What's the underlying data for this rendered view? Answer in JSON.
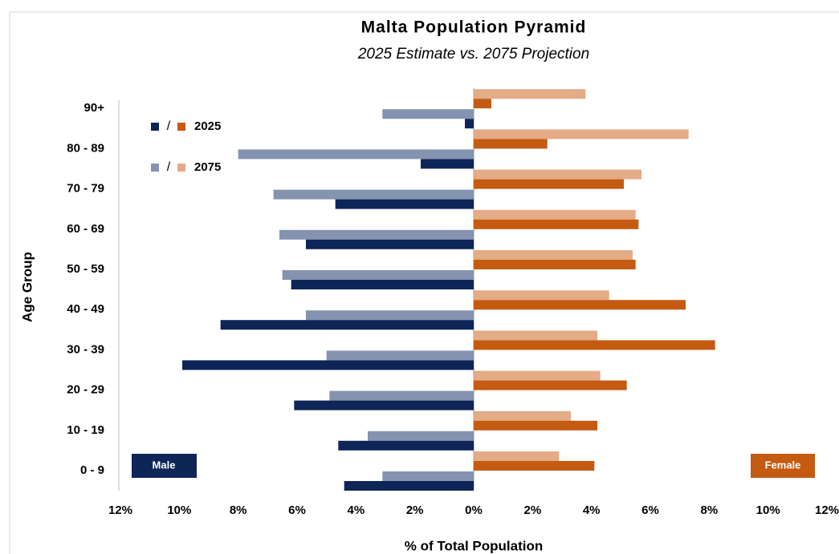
{
  "chart_data": {
    "type": "pyramid",
    "title": "Malta Population Pyramid",
    "subtitle": "2025 Estimate vs. 2075 Projection",
    "x_label": "% of Total Population",
    "y_label": "Age Group",
    "left_label": "Male",
    "right_label": "Female",
    "legend_separator": "/",
    "categories": [
      "0 - 9",
      "10 - 19",
      "20 - 29",
      "30 - 39",
      "40 - 49",
      "50 - 59",
      "60 - 69",
      "70 - 79",
      "80 - 89",
      "90+"
    ],
    "series": [
      {
        "name": "2025",
        "male_color": "#0d2557",
        "female_color": "#c55a11",
        "male": [
          -4.4,
          -4.6,
          -6.1,
          -9.9,
          -8.6,
          -6.2,
          -5.7,
          -4.7,
          -1.8,
          -0.3
        ],
        "female": [
          4.1,
          4.2,
          5.2,
          8.2,
          7.2,
          5.5,
          5.6,
          5.1,
          2.5,
          0.6
        ]
      },
      {
        "name": "2075",
        "male_color": "#8393b0",
        "female_color": "#e3ab86",
        "male": [
          -3.1,
          -3.6,
          -4.9,
          -5.0,
          -5.7,
          -6.5,
          -6.6,
          -6.8,
          -8.0,
          -3.1
        ],
        "female": [
          2.9,
          3.3,
          4.3,
          4.2,
          4.6,
          5.4,
          5.5,
          5.7,
          7.3,
          3.8
        ]
      }
    ],
    "xlim": [
      -12,
      12
    ],
    "xticks": [
      {
        "value": -12,
        "label": "12%"
      },
      {
        "value": -10,
        "label": "10%"
      },
      {
        "value": -8,
        "label": "8%"
      },
      {
        "value": -6,
        "label": "6%"
      },
      {
        "value": -4,
        "label": "4%"
      },
      {
        "value": -2,
        "label": "2%"
      },
      {
        "value": 0,
        "label": "0%"
      },
      {
        "value": 2,
        "label": "2%"
      },
      {
        "value": 4,
        "label": "4%"
      },
      {
        "value": 6,
        "label": "6%"
      },
      {
        "value": 8,
        "label": "8%"
      },
      {
        "value": 10,
        "label": "10%"
      },
      {
        "value": 12,
        "label": "12%"
      }
    ]
  }
}
